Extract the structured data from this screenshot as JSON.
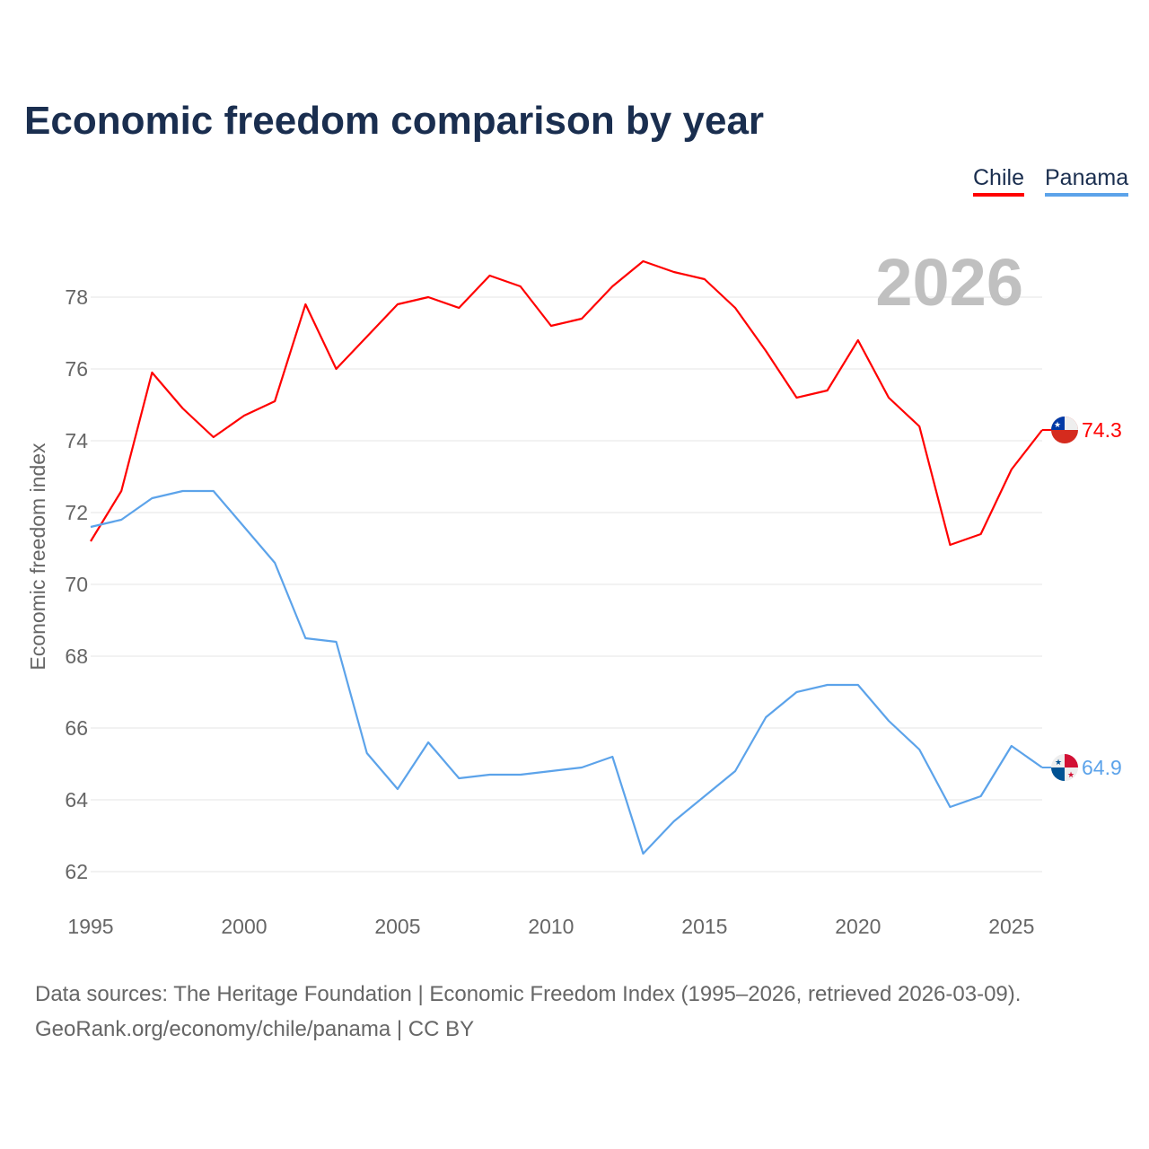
{
  "title": "Economic freedom comparison by year",
  "legend": [
    "Chile",
    "Panama"
  ],
  "year_watermark": "2026",
  "footer": {
    "line1": "Data sources: The Heritage Foundation | Economic Freedom Index (1995–2026, retrieved 2026-03-09).",
    "line2": "GeoRank.org/economy/chile/panama | CC BY"
  },
  "chart_data": {
    "type": "line",
    "title": "Economic freedom comparison by year",
    "xlabel": "",
    "ylabel": "Economic freedom index",
    "xlim": [
      1995,
      2026
    ],
    "ylim": [
      62,
      79.5
    ],
    "x_ticks": [
      1995,
      2000,
      2005,
      2010,
      2015,
      2020,
      2025
    ],
    "y_ticks": [
      62,
      64,
      66,
      68,
      70,
      72,
      74,
      76,
      78
    ],
    "grid": true,
    "legend_position": "top-right",
    "x": [
      1995,
      1996,
      1997,
      1998,
      1999,
      2000,
      2001,
      2002,
      2003,
      2004,
      2005,
      2006,
      2007,
      2008,
      2009,
      2010,
      2011,
      2012,
      2013,
      2014,
      2015,
      2016,
      2017,
      2018,
      2019,
      2020,
      2021,
      2022,
      2023,
      2024,
      2025,
      2026
    ],
    "series": [
      {
        "name": "Chile",
        "color": "#ff0000",
        "end_label": "74.3",
        "values": [
          71.2,
          72.6,
          75.9,
          74.9,
          74.1,
          74.7,
          75.1,
          77.8,
          76.0,
          76.9,
          77.8,
          78.0,
          77.7,
          78.6,
          78.3,
          77.2,
          77.4,
          78.3,
          79.0,
          78.7,
          78.5,
          77.7,
          76.5,
          75.2,
          75.4,
          76.8,
          75.2,
          74.4,
          71.1,
          71.4,
          73.2,
          74.3
        ]
      },
      {
        "name": "Panama",
        "color": "#5ca3ea",
        "end_label": "64.9",
        "values": [
          71.6,
          71.8,
          72.4,
          72.6,
          72.6,
          71.6,
          70.6,
          68.5,
          68.4,
          65.3,
          64.3,
          65.6,
          64.6,
          64.7,
          64.7,
          64.8,
          64.9,
          65.2,
          62.5,
          63.4,
          64.1,
          64.8,
          66.3,
          67.0,
          67.2,
          67.2,
          66.2,
          65.4,
          63.8,
          64.1,
          65.5,
          64.9
        ]
      }
    ]
  }
}
